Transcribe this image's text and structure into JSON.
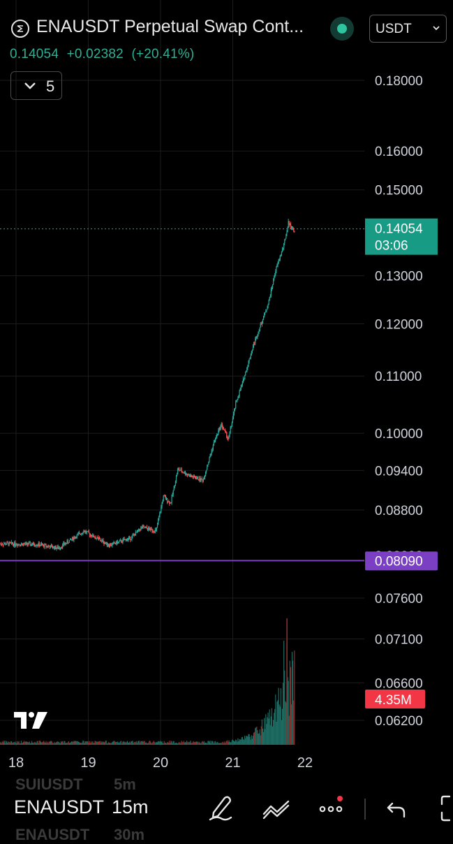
{
  "header": {
    "title": "ENAUSDT Perpetual Swap Cont...",
    "currency": "USDT",
    "quote": {
      "price": "0.14054",
      "change": "+0.02382",
      "change_pct": "(+20.41%)"
    },
    "indicators_count": "5"
  },
  "colors": {
    "up": "#26a69a",
    "down": "#ef5350",
    "accent": "#2fb094",
    "level": "#7b3fc4",
    "volume_badge": "#f23645"
  },
  "chart_data": {
    "type": "candlestick",
    "symbol": "ENAUSDT",
    "interval": "15m",
    "x_ticks": [
      "18",
      "19",
      "20",
      "21",
      "22"
    ],
    "y_ticks": [
      "0.18000",
      "0.16000",
      "0.15000",
      "0.13000",
      "0.12000",
      "0.11000",
      "0.10000",
      "0.09400",
      "0.08800",
      "0.07600",
      "0.07100",
      "0.06600",
      "0.06200"
    ],
    "y_scale": "log",
    "last_price": "0.14054",
    "countdown": "03:06",
    "horizontal_line": "0.08090",
    "volume_label": "4.35M",
    "price_path": [
      {
        "day": 17.9,
        "price": 0.0832
      },
      {
        "day": 18.3,
        "price": 0.0831
      },
      {
        "day": 18.6,
        "price": 0.0826
      },
      {
        "day": 18.95,
        "price": 0.085
      },
      {
        "day": 19.3,
        "price": 0.083
      },
      {
        "day": 19.6,
        "price": 0.084
      },
      {
        "day": 19.75,
        "price": 0.0855
      },
      {
        "day": 19.95,
        "price": 0.085
      },
      {
        "day": 20.05,
        "price": 0.09
      },
      {
        "day": 20.15,
        "price": 0.089
      },
      {
        "day": 20.25,
        "price": 0.0942
      },
      {
        "day": 20.45,
        "price": 0.093
      },
      {
        "day": 20.6,
        "price": 0.0925
      },
      {
        "day": 20.75,
        "price": 0.0985
      },
      {
        "day": 20.85,
        "price": 0.1015
      },
      {
        "day": 20.95,
        "price": 0.099
      },
      {
        "day": 21.05,
        "price": 0.105
      },
      {
        "day": 21.15,
        "price": 0.109
      },
      {
        "day": 21.3,
        "price": 0.116
      },
      {
        "day": 21.5,
        "price": 0.124
      },
      {
        "day": 21.6,
        "price": 0.131
      },
      {
        "day": 21.72,
        "price": 0.137
      },
      {
        "day": 21.78,
        "price": 0.142
      },
      {
        "day": 21.85,
        "price": 0.1405
      }
    ]
  },
  "toolbar": {
    "symbol": "ENAUSDT",
    "timeframe": "15m",
    "ghost_above": [
      "SUIUSDT",
      "5m"
    ],
    "ghost_below": [
      "ENAUSDT",
      "30m"
    ]
  }
}
